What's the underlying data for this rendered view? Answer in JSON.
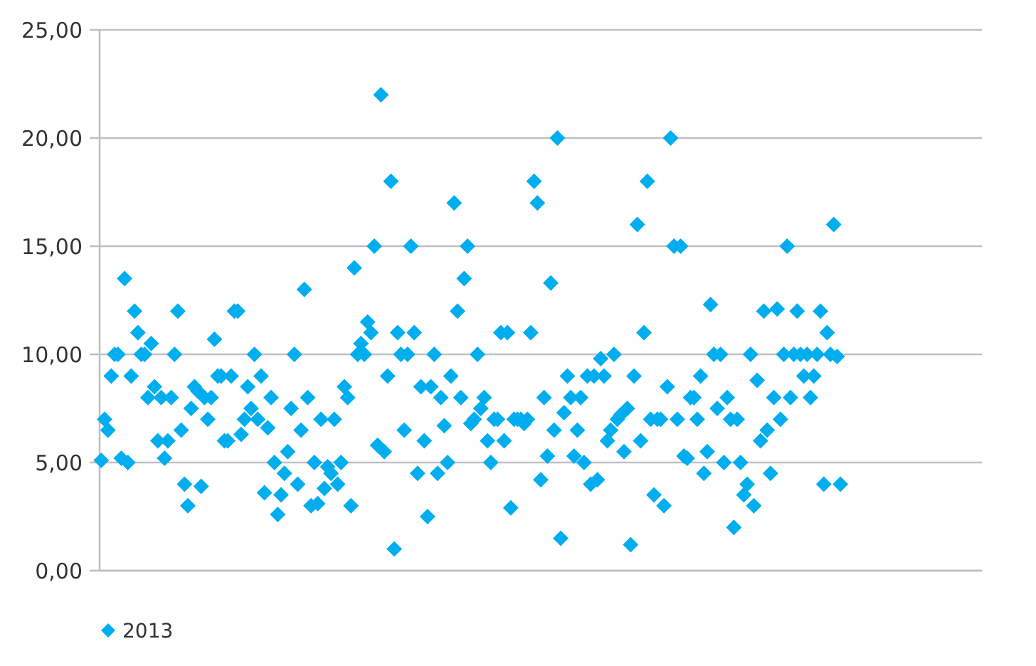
{
  "chart_data": {
    "type": "scatter",
    "marker": "diamond",
    "grid": "y",
    "legend": "bottom left",
    "tick_labels": "y",
    "ylim": [
      0,
      25
    ],
    "yticks": [
      {
        "value": 0,
        "label": "0,00"
      },
      {
        "value": 5,
        "label": "5,00"
      },
      {
        "value": 10,
        "label": "10,00"
      },
      {
        "value": 15,
        "label": "15,00"
      },
      {
        "value": 20,
        "label": "20,00"
      },
      {
        "value": 25,
        "label": "25,00"
      }
    ],
    "categories": [
      null,
      null,
      null,
      null,
      null,
      null,
      null,
      null,
      null,
      null,
      null,
      null,
      null,
      null,
      null,
      null,
      null,
      null,
      null,
      null,
      null,
      null,
      null,
      null,
      null,
      null,
      null,
      null,
      null,
      null,
      null,
      null,
      null,
      null,
      null,
      null,
      null,
      null,
      null,
      null,
      null,
      null,
      null,
      null,
      null,
      null,
      null,
      null,
      null,
      null,
      null,
      null,
      null,
      null,
      null,
      null,
      null,
      null,
      null,
      null,
      null,
      null,
      null,
      null,
      null,
      null,
      null,
      null,
      null,
      null,
      null,
      null,
      null,
      null,
      null,
      null,
      null,
      null,
      null,
      null,
      null,
      null,
      null,
      null,
      null,
      null,
      null,
      null,
      null,
      null,
      null,
      null,
      null,
      null,
      null,
      null,
      null,
      null,
      null,
      null,
      null,
      null,
      null,
      null,
      null,
      null,
      null,
      null,
      null,
      null,
      null,
      null,
      null,
      null,
      null,
      null,
      null,
      null,
      null,
      null,
      null,
      null,
      null,
      null,
      null,
      null,
      null,
      null,
      null,
      null,
      null,
      null,
      null,
      null,
      null,
      null,
      null,
      null,
      null,
      null,
      null,
      null,
      null,
      null,
      null,
      null,
      null,
      null,
      null,
      null,
      null,
      null,
      null,
      null,
      null,
      null,
      null,
      null,
      null,
      null,
      null,
      null,
      null,
      null,
      null,
      null,
      null,
      null,
      null,
      null,
      null,
      null,
      null,
      null,
      null,
      null,
      null,
      null,
      null,
      null,
      null,
      null,
      null,
      null,
      null,
      null,
      null,
      null,
      null,
      null,
      null,
      null,
      null,
      null,
      null,
      null,
      null,
      null,
      null,
      null,
      null,
      null,
      null,
      null,
      null,
      null,
      null,
      null,
      null,
      null,
      null,
      null,
      null,
      null,
      null,
      null,
      null,
      null,
      null,
      null,
      null,
      null,
      null,
      null,
      null,
      null,
      null,
      null,
      null,
      null,
      null,
      null,
      null,
      null,
      null,
      null,
      null,
      null,
      null,
      null,
      null,
      null,
      null,
      null,
      null,
      null,
      null,
      null,
      null,
      null,
      null,
      null,
      null,
      null,
      null,
      null,
      null,
      null,
      null,
      null,
      null,
      null,
      null,
      null,
      null
    ],
    "series": [
      {
        "name": "2013",
        "color": "#00aeef",
        "values": [
          5.1,
          7,
          6.5,
          9,
          10,
          10,
          5.2,
          13.5,
          5,
          9,
          12,
          11,
          10,
          10,
          8,
          10.5,
          8.5,
          6,
          8,
          5.2,
          6,
          8,
          10,
          12,
          6.5,
          4,
          3,
          7.5,
          8.5,
          8.3,
          3.9,
          8,
          7,
          8,
          10.7,
          9,
          9,
          6,
          6,
          9,
          12,
          12,
          6.3,
          7,
          8.5,
          7.5,
          10,
          7,
          9,
          3.6,
          6.6,
          8,
          5,
          2.6,
          3.5,
          4.5,
          5.5,
          7.5,
          10,
          4,
          6.5,
          13,
          8,
          3,
          5,
          3.1,
          7,
          3.8,
          4.8,
          4.5,
          7,
          4,
          5,
          8.5,
          8,
          3,
          14,
          10,
          10.5,
          10,
          11.5,
          11,
          15,
          5.8,
          22,
          5.5,
          9,
          18,
          1,
          11,
          10,
          6.5,
          10,
          15,
          11,
          4.5,
          8.5,
          6,
          2.5,
          8.5,
          10,
          4.5,
          8,
          6.7,
          5,
          9,
          17,
          12,
          8,
          13.5,
          15,
          6.8,
          7,
          10,
          7.5,
          8,
          6,
          5,
          7,
          7,
          11,
          6,
          11,
          2.9,
          7,
          7,
          7,
          6.8,
          7,
          11,
          18,
          17,
          4.2,
          8,
          5.3,
          13.3,
          6.5,
          20,
          1.5,
          7.3,
          9,
          8,
          5.3,
          6.5,
          8,
          5,
          9,
          4,
          9,
          4.2,
          9.8,
          9,
          6,
          6.5,
          10,
          7,
          7.2,
          5.5,
          7.5,
          1.2,
          9,
          16,
          6,
          11,
          18,
          7,
          3.5,
          7,
          7,
          3,
          8.5,
          20,
          15,
          7,
          15,
          5.3,
          5.2,
          8,
          8,
          7,
          9,
          4.5,
          5.5,
          12.3,
          10,
          7.5,
          10,
          5,
          8,
          7,
          2,
          7,
          5,
          3.5,
          4,
          10,
          3,
          8.8,
          6,
          12,
          6.5,
          4.5,
          8,
          12.1,
          7,
          10,
          15,
          8,
          10,
          12,
          10,
          9,
          10,
          8,
          9,
          10,
          12,
          4,
          11,
          10,
          16,
          9.9,
          4,
          null,
          null,
          null,
          null,
          null,
          null,
          null,
          null,
          null,
          null,
          null,
          null,
          null,
          null,
          null,
          null,
          null,
          null,
          null,
          null,
          null,
          null,
          null,
          null,
          null,
          null,
          null,
          null,
          null,
          null,
          null,
          null,
          null,
          null,
          null,
          null,
          null,
          null,
          null,
          null,
          null,
          null
        ]
      }
    ]
  }
}
